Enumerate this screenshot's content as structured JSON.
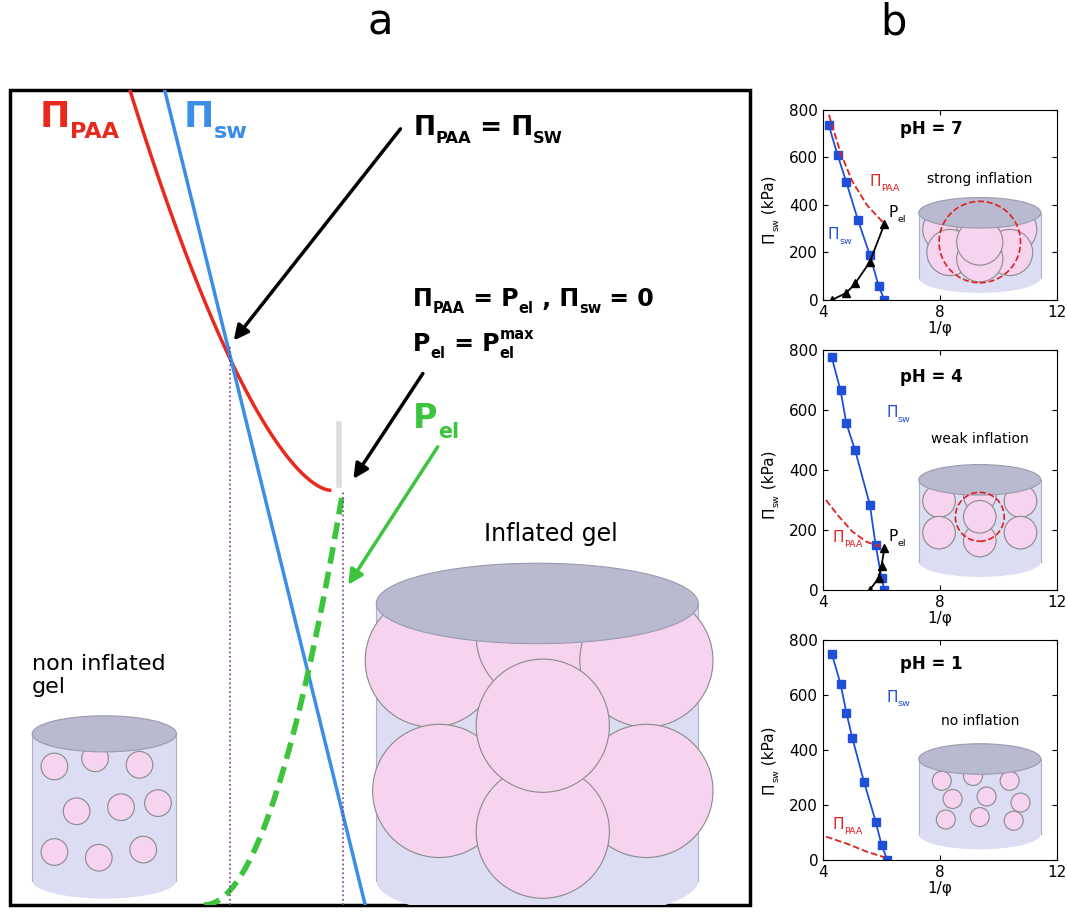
{
  "panel_labels": [
    "a",
    "b"
  ],
  "diagram": {
    "labels": [
      {
        "parts": [
          {
            "text": "Π",
            "sub": "PAA"
          }
        ],
        "color": "#e8291c"
      },
      {
        "parts": [
          {
            "text": "Π",
            "sub": "sw"
          }
        ],
        "color": "#3b8ee6"
      },
      {
        "parts": [
          {
            "text": "P",
            "sub": "el"
          }
        ],
        "color": "#3cc43c"
      }
    ],
    "notes": [
      [
        {
          "text": "Π",
          "sub": "PAA"
        },
        {
          "text": " = Π",
          "sub": "SW"
        }
      ],
      [
        {
          "text": "Π",
          "sub": "PAA"
        },
        {
          "text": " = P",
          "sub": "el"
        },
        {
          "text": " , Π",
          "sub": "sw"
        },
        {
          "text": " = 0"
        }
      ],
      [
        {
          "text": "P",
          "sub": "el"
        },
        {
          "text": " = P",
          "sub": "el",
          "sup": "max"
        }
      ]
    ],
    "gels": [
      "non inflated\ngel",
      "Inflated gel"
    ]
  },
  "chart_data": [
    {
      "type": "line",
      "title": "pH = 7",
      "annotation": "strong inflation",
      "xlabel": "1/φ",
      "ylabel": [
        {
          "text": "Π",
          "sub": "sw"
        },
        {
          "text": " (kPa)"
        }
      ],
      "xlim": [
        4,
        12
      ],
      "xticks": [
        4,
        8,
        12
      ],
      "ylim": [
        0,
        800
      ],
      "yticks": [
        0,
        200,
        400,
        600,
        800
      ],
      "series": [
        {
          "name": [
            {
              "text": "Π",
              "sub": "sw"
            }
          ],
          "color": "#1f4fd8",
          "marker": "square",
          "line_style": "solid",
          "x": [
            4.2,
            4.5,
            4.8,
            5.2,
            5.6,
            5.9,
            6.1
          ],
          "values": [
            735,
            610,
            495,
            335,
            190,
            60,
            0
          ]
        },
        {
          "name": [
            {
              "text": "Π",
              "sub": "PAA"
            }
          ],
          "color": "#e02020",
          "line_style": "dashed",
          "x": [
            4.2,
            4.6,
            5.0,
            5.5,
            6.1
          ],
          "values": [
            780,
            620,
            500,
            400,
            320
          ]
        },
        {
          "name": [
            {
              "text": "P",
              "sub": "el"
            }
          ],
          "color": "#000000",
          "marker": "triangle",
          "line_style": "solid",
          "x": [
            4.3,
            4.8,
            5.1,
            5.6,
            6.1
          ],
          "values": [
            0,
            30,
            70,
            160,
            320
          ]
        }
      ]
    },
    {
      "type": "line",
      "title": "pH = 4",
      "annotation": "weak inflation",
      "xlabel": "1/φ",
      "ylabel": [
        {
          "text": "Π",
          "sub": "sw"
        },
        {
          "text": " (kPa)"
        }
      ],
      "xlim": [
        4,
        12
      ],
      "xticks": [
        4,
        8,
        12
      ],
      "ylim": [
        0,
        800
      ],
      "yticks": [
        0,
        200,
        400,
        600,
        800
      ],
      "series": [
        {
          "name": [
            {
              "text": "Π",
              "sub": "sw"
            }
          ],
          "color": "#1f4fd8",
          "marker": "square",
          "line_style": "solid",
          "x": [
            4.3,
            4.6,
            4.8,
            5.1,
            5.6,
            5.8,
            6.0,
            6.1
          ],
          "values": [
            775,
            665,
            555,
            465,
            285,
            150,
            40,
            0
          ]
        },
        {
          "name": [
            {
              "text": "Π",
              "sub": "PAA"
            }
          ],
          "color": "#e02020",
          "line_style": "dashed",
          "x": [
            4.1,
            4.5,
            5.0,
            5.5,
            6.1
          ],
          "values": [
            300,
            250,
            195,
            160,
            140
          ]
        },
        {
          "name": [
            {
              "text": "P",
              "sub": "el"
            }
          ],
          "color": "#000000",
          "marker": "triangle",
          "line_style": "solid",
          "x": [
            5.6,
            5.9,
            6.0,
            6.1
          ],
          "values": [
            0,
            40,
            80,
            140
          ]
        }
      ]
    },
    {
      "type": "line",
      "title": "pH = 1",
      "annotation": "no inflation",
      "xlabel": "1/φ",
      "ylabel": [
        {
          "text": "Π",
          "sub": "sw"
        },
        {
          "text": " (kPa)"
        }
      ],
      "xlim": [
        4,
        12
      ],
      "xticks": [
        4,
        8,
        12
      ],
      "ylim": [
        0,
        800
      ],
      "yticks": [
        0,
        200,
        400,
        600,
        800
      ],
      "series": [
        {
          "name": [
            {
              "text": "Π",
              "sub": "sw"
            }
          ],
          "color": "#1f4fd8",
          "marker": "square",
          "line_style": "solid",
          "x": [
            4.3,
            4.6,
            4.8,
            5.0,
            5.4,
            5.8,
            6.0,
            6.2
          ],
          "values": [
            750,
            640,
            535,
            445,
            285,
            140,
            55,
            0
          ]
        },
        {
          "name": [
            {
              "text": "Π",
              "sub": "PAA"
            }
          ],
          "color": "#e02020",
          "line_style": "dashed",
          "x": [
            4.1,
            4.8,
            5.5,
            6.1
          ],
          "values": [
            85,
            60,
            30,
            10
          ]
        }
      ]
    }
  ]
}
